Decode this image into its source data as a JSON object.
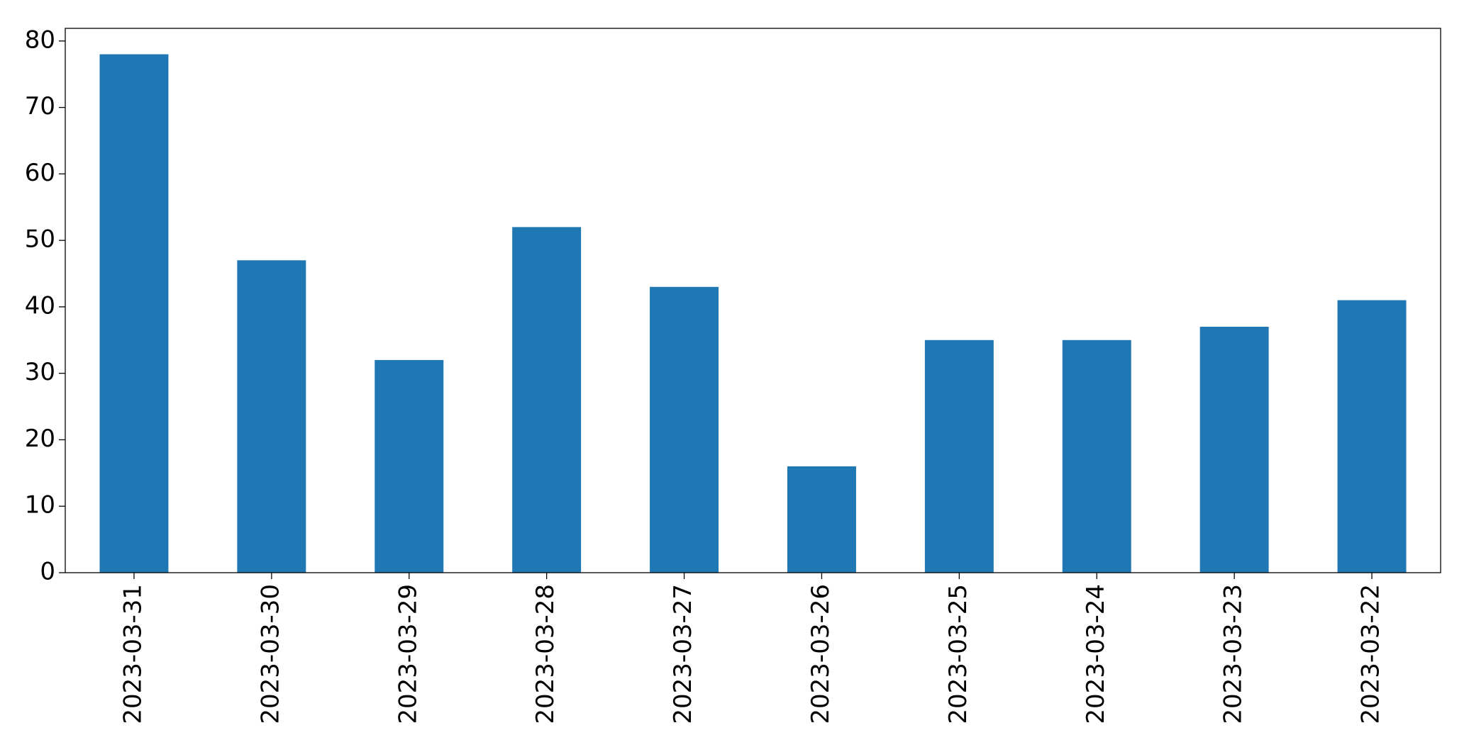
{
  "chart_data": {
    "type": "bar",
    "categories": [
      "2023-03-31",
      "2023-03-30",
      "2023-03-29",
      "2023-03-28",
      "2023-03-27",
      "2023-03-26",
      "2023-03-25",
      "2023-03-24",
      "2023-03-23",
      "2023-03-22"
    ],
    "values": [
      78,
      47,
      32,
      52,
      43,
      16,
      35,
      35,
      37,
      41
    ],
    "color": "#1f77b4",
    "ylim": [
      0,
      81.9
    ],
    "yticks": [
      0,
      10,
      20,
      30,
      40,
      50,
      60,
      70,
      80
    ],
    "grid": false
  }
}
